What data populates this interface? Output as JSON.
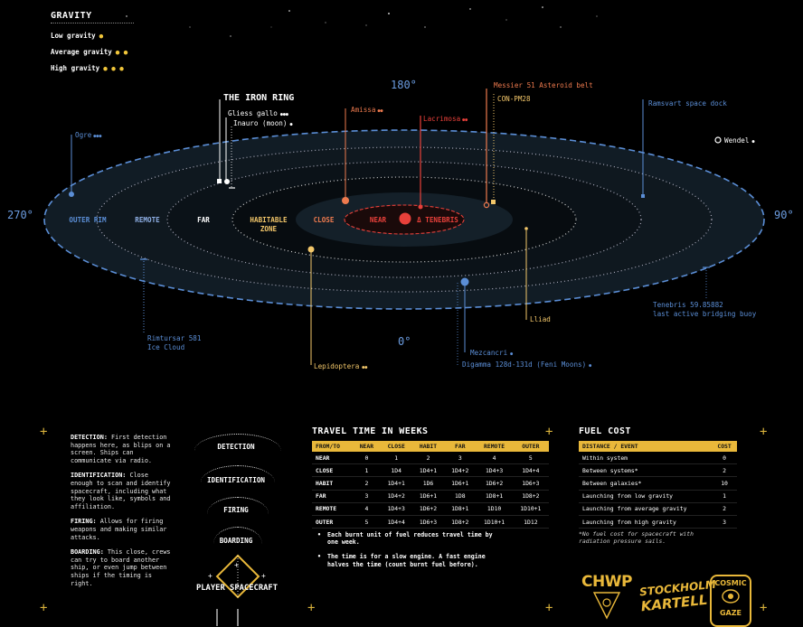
{
  "gravity": {
    "title": "GRAVITY",
    "items": [
      {
        "label": "Low gravity",
        "dots": "●"
      },
      {
        "label": "Average gravity",
        "dots": "● ●"
      },
      {
        "label": "High gravity",
        "dots": "● ● ●"
      }
    ]
  },
  "map": {
    "degrees": {
      "top": "180°",
      "right": "90°",
      "bottom": "0°",
      "left": "270°"
    },
    "zones": {
      "outer_rim": "OUTER RIM",
      "remote": "REMOTE",
      "far": "FAR",
      "habitable_1": "HABITABLE",
      "habitable_2": "ZONE",
      "close": "CLOSE",
      "near": "NEAR",
      "star": "Δ TENEBRIS"
    },
    "locations": {
      "iron_ring": "THE IRON RING",
      "gliess": "Gliess gallo",
      "gliess_g": "●●●",
      "inauro": "Inauro (moon)",
      "inauro_g": "●",
      "ogre": "Ogre",
      "ogre_g": "●●●",
      "amissa": "Amissa",
      "amissa_g": "●●",
      "lacrimosa": "Lacrimosa",
      "lacrimosa_g": "●●",
      "messier": "Messier 51 Asteroid belt",
      "con": "CON-PM28",
      "ramsvart": "Ramsvart space dock",
      "wendel": "Wendel",
      "wendel_g": "●",
      "rimtursar_1": "Rimtursar 581",
      "rimtursar_2": "Ice Cloud",
      "lepidoptera": "Lepidoptera",
      "lepidoptera_g": "●●",
      "mezcancri": "Mezcancri",
      "mezcancri_g": "●",
      "digamma": "Digamma 128d-131d (Feni Moons)",
      "digamma_g": "●",
      "lliad": "Lliad",
      "tenebris_buoy_1": "Tenebris 59.85882",
      "tenebris_buoy_2": "last active bridging buoy"
    }
  },
  "detection_notes": [
    {
      "title": "DETECTION:",
      "text": " First detection happens here, as blips on a screen. Ships can communicate via radio."
    },
    {
      "title": "IDENTIFICATION:",
      "text": " Close enough to scan and identify spacecraft, including what they look like, symbols and affiliation."
    },
    {
      "title": "FIRING:",
      "text": " Allows for firing weapons and making similar attacks."
    },
    {
      "title": "BOARDING:",
      "text": " This close, crews can try to board another ship, or even jump between ships if the timing is right."
    }
  ],
  "phases": [
    "DETECTION",
    "IDENTIFICATION",
    "FIRING",
    "BOARDING"
  ],
  "player": "PLAYER SPACECRAFT",
  "travel": {
    "title": "TRAVEL TIME IN WEEKS",
    "headers": [
      "FROM/TO",
      "NEAR",
      "CLOSE",
      "HABIT",
      "FAR",
      "REMOTE",
      "OUTER"
    ],
    "rows": [
      [
        "NEAR",
        "0",
        "1",
        "2",
        "3",
        "4",
        "5"
      ],
      [
        "CLOSE",
        "1",
        "1D4",
        "1D4+1",
        "1D4+2",
        "1D4+3",
        "1D4+4"
      ],
      [
        "HABIT",
        "2",
        "1D4+1",
        "1D6",
        "1D6+1",
        "1D6+2",
        "1D6+3"
      ],
      [
        "FAR",
        "3",
        "1D4+2",
        "1D6+1",
        "1D8",
        "1D8+1",
        "1D8+2"
      ],
      [
        "REMOTE",
        "4",
        "1D4+3",
        "1D6+2",
        "1D8+1",
        "1D10",
        "1D10+1"
      ],
      [
        "OUTER",
        "5",
        "1D4+4",
        "1D6+3",
        "1D8+2",
        "1D10+1",
        "1D12"
      ]
    ],
    "notes": [
      "Each burnt unit of fuel reduces travel time by one week.",
      "The time is for a slow engine. A fast engine halves the time (count burnt fuel before)."
    ]
  },
  "fuel": {
    "title": "FUEL COST",
    "headers": [
      "DISTANCE / EVENT",
      "COST"
    ],
    "rows": [
      [
        "Within system",
        "0"
      ],
      [
        "Between systems*",
        "2"
      ],
      [
        "Between galaxies*",
        "10"
      ],
      [
        "Launching from low gravity",
        "1"
      ],
      [
        "Launching from average gravity",
        "2"
      ],
      [
        "Launching from high gravity",
        "3"
      ]
    ],
    "footnote": "*No fuel cost for spacecraft with radiation pressure sails."
  },
  "logos": {
    "chwp": "CHWP",
    "stockholm_1": "STOCKHOLM",
    "stockholm_2": "KARTELL",
    "cosmic_1": "COSMIC",
    "cosmic_2": "GAZE"
  },
  "colors": {
    "accent": "#e9b83a",
    "blue": "#5b8ed6",
    "red": "#e8403a",
    "orange": "#ee7a4e",
    "yellow": "#f3c76a"
  }
}
